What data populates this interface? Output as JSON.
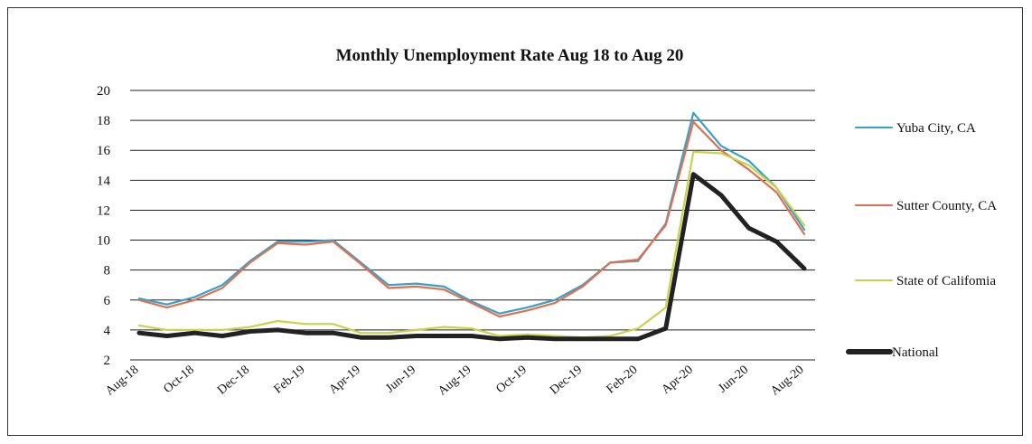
{
  "chart_data": {
    "type": "line",
    "title": "Monthly Unemployment  Rate Aug 18 to Aug 20",
    "xlabel": "",
    "ylabel": "",
    "ylim": [
      2,
      20
    ],
    "yticks": [
      2,
      4,
      6,
      8,
      10,
      12,
      14,
      16,
      18,
      20
    ],
    "grid": true,
    "legend_position": "right",
    "x": [
      "Aug-18",
      "Sep-18",
      "Oct-18",
      "Nov-18",
      "Dec-18",
      "Jan-19",
      "Feb-19",
      "Mar-19",
      "Apr-19",
      "May-19",
      "Jun-19",
      "Jul-19",
      "Aug-19",
      "Sep-19",
      "Oct-19",
      "Nov-19",
      "Dec-19",
      "Jan-20",
      "Feb-20",
      "Mar-20",
      "Apr-20",
      "May-20",
      "Jun-20",
      "Jul-20",
      "Aug-20"
    ],
    "xtick_labels": [
      "Aug-18",
      "Oct-18",
      "Dec-18",
      "Feb-19",
      "Apr-19",
      "Jun-19",
      "Aug-19",
      "Oct-19",
      "Dec-19",
      "Feb-20",
      "Apr-20",
      "Jun-20",
      "Aug-20"
    ],
    "series": [
      {
        "name": "Yuba City, CA",
        "color": "#3aa0c8",
        "values": [
          6.1,
          5.7,
          6.2,
          7.0,
          8.6,
          9.9,
          9.9,
          10.0,
          8.5,
          7.0,
          7.1,
          6.9,
          5.9,
          5.1,
          5.5,
          6.0,
          7.0,
          8.5,
          8.6,
          11.1,
          18.5,
          16.3,
          15.3,
          13.5,
          10.7
        ]
      },
      {
        "name": "Sutter County, CA",
        "color": "#e07050",
        "values": [
          6.0,
          5.5,
          6.0,
          6.8,
          8.5,
          9.8,
          9.7,
          9.9,
          8.4,
          6.8,
          6.9,
          6.7,
          5.8,
          4.9,
          5.3,
          5.8,
          6.9,
          8.5,
          8.7,
          11.0,
          17.9,
          16.0,
          14.7,
          13.2,
          10.4
        ]
      },
      {
        "name": "State of Califomia",
        "color": "#c8d24a",
        "values": [
          4.3,
          4.0,
          4.0,
          4.0,
          4.2,
          4.6,
          4.4,
          4.4,
          3.8,
          3.8,
          4.0,
          4.2,
          4.1,
          3.6,
          3.7,
          3.6,
          3.5,
          3.6,
          4.1,
          5.5,
          15.9,
          15.8,
          15.0,
          13.5,
          11.0
        ]
      },
      {
        "name": "National",
        "color": "#222222",
        "values": [
          3.8,
          3.6,
          3.8,
          3.6,
          3.9,
          4.0,
          3.8,
          3.8,
          3.5,
          3.5,
          3.6,
          3.6,
          3.6,
          3.4,
          3.5,
          3.4,
          3.4,
          3.4,
          3.4,
          4.1,
          14.4,
          13.0,
          10.8,
          9.9,
          8.1
        ]
      }
    ]
  }
}
